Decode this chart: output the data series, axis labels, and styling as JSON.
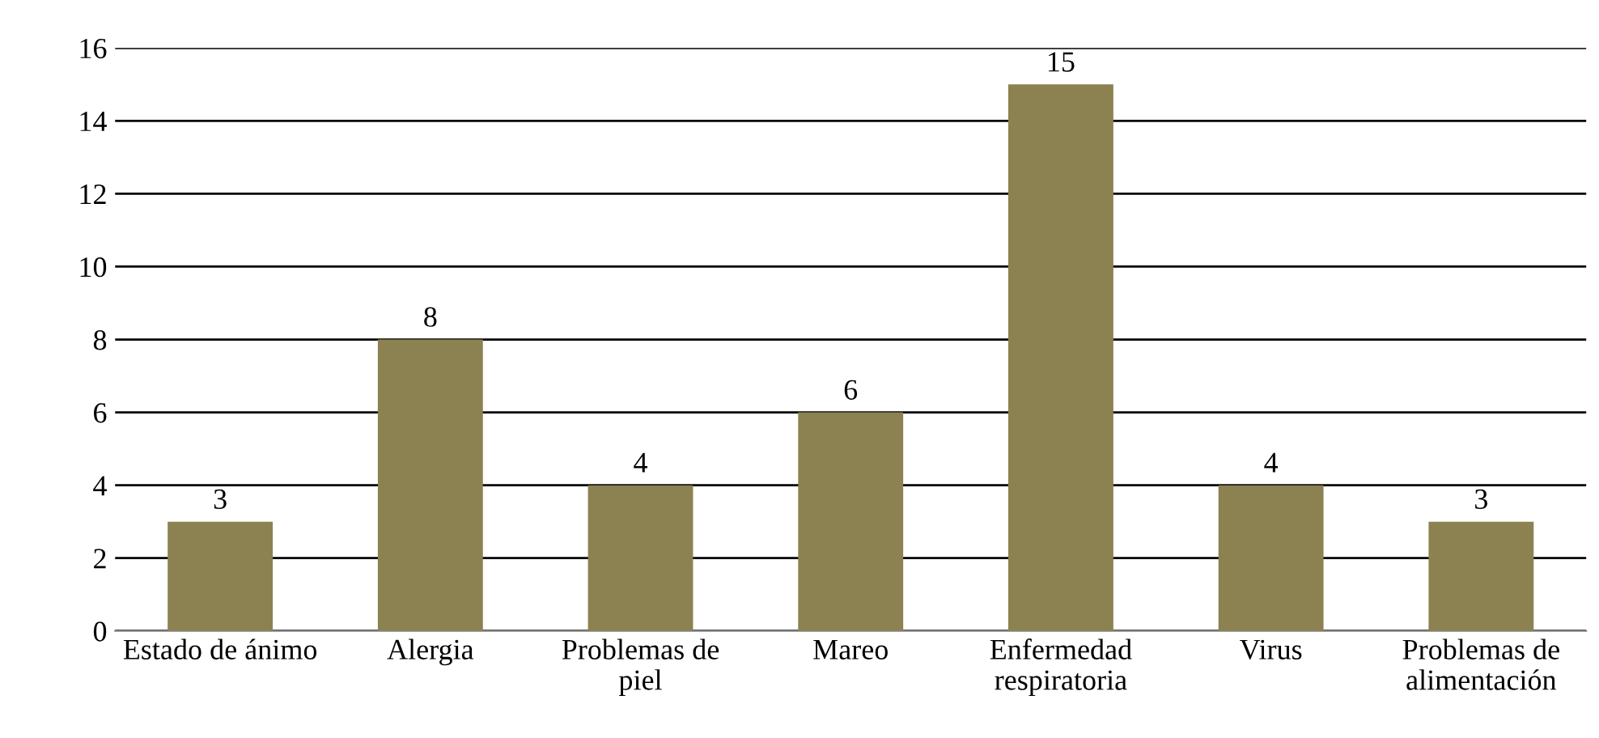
{
  "chart_data": {
    "type": "bar",
    "categories": [
      "Estado de ánimo",
      "Alergia",
      "Problemas de\npiel",
      "Mareo",
      "Enfermedad\nrespiratoria",
      "Virus",
      "Problemas de\nalimentación"
    ],
    "values": [
      3,
      8,
      4,
      6,
      15,
      4,
      3
    ],
    "color": "#8c8150",
    "ylim": [
      0,
      16
    ],
    "yticks": [
      0,
      2,
      4,
      6,
      8,
      10,
      12,
      14,
      16
    ],
    "grid": "y",
    "data_labels": true
  }
}
